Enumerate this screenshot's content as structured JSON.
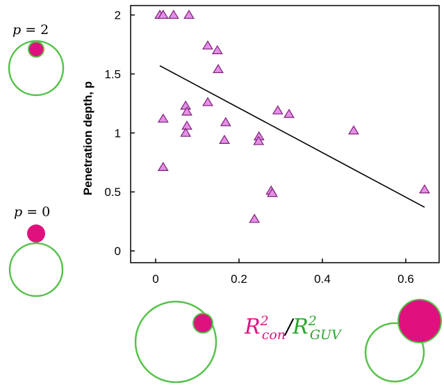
{
  "colors": {
    "marker_fill": "#e58fe6",
    "marker_stroke": "#7a1e78",
    "fit_line": "#000000",
    "vesicle": "#55c24a",
    "condensate": "#e0117f",
    "ratio_con": "#e0117f",
    "ratio_guv": "#2aa52a"
  },
  "schematic": {
    "p2_label": {
      "var": "p",
      "eq": " = 2"
    },
    "p0_label": {
      "var": "p",
      "eq": " = 0"
    },
    "ratio_label": {
      "numerator_base": "R",
      "numerator_exp": "2",
      "numerator_sub": "con",
      "slash": "/",
      "denominator_base": "R",
      "denominator_exp": "2",
      "denominator_sub": "GUV"
    }
  },
  "chart_data": {
    "type": "scatter",
    "title": "",
    "xlabel": "",
    "ylabel": "Penetration depth, p",
    "xlim": [
      -0.06,
      0.68
    ],
    "ylim": [
      -0.1,
      2.08
    ],
    "xticks": [
      0,
      0.2,
      0.4,
      0.6
    ],
    "xtick_labels": [
      "0",
      "0.2",
      "0.4",
      "0.6"
    ],
    "yticks": [
      0,
      0.5,
      1,
      1.5,
      2
    ],
    "ytick_labels": [
      "0",
      "0.5",
      "1",
      "1.5",
      "2"
    ],
    "grid": false,
    "marker": "triangle",
    "points": [
      {
        "x": 0.01,
        "y": 2.0
      },
      {
        "x": 0.018,
        "y": 2.0
      },
      {
        "x": 0.043,
        "y": 2.0
      },
      {
        "x": 0.08,
        "y": 2.0
      },
      {
        "x": 0.125,
        "y": 1.74
      },
      {
        "x": 0.148,
        "y": 1.7
      },
      {
        "x": 0.15,
        "y": 1.54
      },
      {
        "x": 0.125,
        "y": 1.26
      },
      {
        "x": 0.072,
        "y": 1.23
      },
      {
        "x": 0.075,
        "y": 1.18
      },
      {
        "x": 0.018,
        "y": 1.12
      },
      {
        "x": 0.075,
        "y": 1.06
      },
      {
        "x": 0.072,
        "y": 1.0
      },
      {
        "x": 0.168,
        "y": 1.09
      },
      {
        "x": 0.165,
        "y": 0.94
      },
      {
        "x": 0.248,
        "y": 0.97
      },
      {
        "x": 0.247,
        "y": 0.93
      },
      {
        "x": 0.293,
        "y": 1.19
      },
      {
        "x": 0.32,
        "y": 1.16
      },
      {
        "x": 0.475,
        "y": 1.02
      },
      {
        "x": 0.018,
        "y": 0.71
      },
      {
        "x": 0.277,
        "y": 0.51
      },
      {
        "x": 0.28,
        "y": 0.49
      },
      {
        "x": 0.237,
        "y": 0.27
      },
      {
        "x": 0.645,
        "y": 0.52
      }
    ],
    "fit_line": {
      "x": [
        0.01,
        0.645
      ],
      "y": [
        1.57,
        0.37
      ]
    }
  }
}
